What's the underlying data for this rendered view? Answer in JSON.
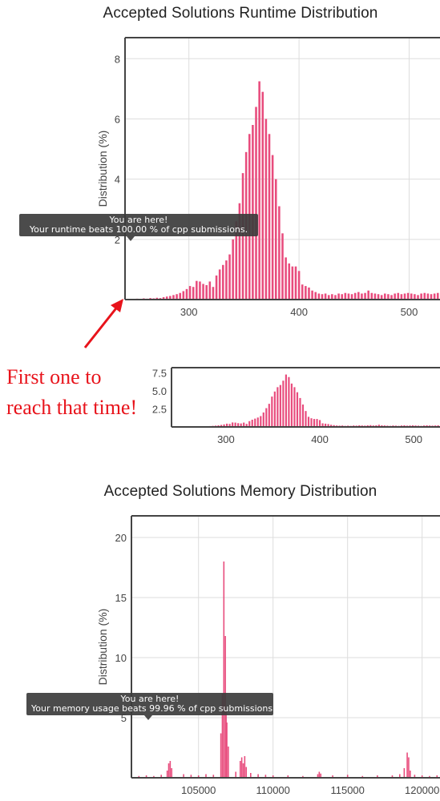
{
  "colors": {
    "bar": "#e84c7d",
    "annotation": "#e8131b",
    "axis": "#444444",
    "grid": "#dddddd"
  },
  "annotation": {
    "line1": "First one to",
    "line2": "reach that time!"
  },
  "runtime_tooltip": {
    "line1": "You are here!",
    "line2": "Your runtime beats 100.00 % of cpp submissions."
  },
  "memory_tooltip": {
    "line1": "You are here!",
    "line2": "Your memory usage beats 99.96 % of cpp submissions."
  },
  "chart_data": [
    {
      "id": "runtime",
      "type": "bar",
      "title": "Accepted Solutions Runtime Distribution",
      "ylabel": "Distribution (%)",
      "xlabel": "",
      "xlim": [
        242,
        528
      ],
      "ylim": [
        0,
        8.7
      ],
      "xticks": [
        300,
        400,
        500
      ],
      "yticks": [
        2,
        4,
        6,
        8
      ],
      "grid": true,
      "bin_width": 3,
      "x": [
        247,
        250,
        253,
        256,
        259,
        262,
        265,
        268,
        271,
        274,
        277,
        280,
        283,
        286,
        289,
        292,
        295,
        298,
        301,
        304,
        307,
        310,
        313,
        316,
        319,
        322,
        325,
        328,
        331,
        334,
        337,
        340,
        343,
        346,
        349,
        352,
        355,
        358,
        361,
        364,
        367,
        370,
        373,
        376,
        379,
        382,
        385,
        388,
        391,
        394,
        397,
        400,
        403,
        406,
        409,
        412,
        415,
        418,
        421,
        424,
        427,
        430,
        433,
        436,
        439,
        442,
        445,
        448,
        451,
        454,
        457,
        460,
        463,
        466,
        469,
        472,
        475,
        478,
        481,
        484,
        487,
        490,
        493,
        496,
        499,
        502,
        505,
        508,
        511,
        514,
        517,
        520,
        523,
        526
      ],
      "values": [
        0.02,
        0.02,
        0.03,
        0.02,
        0.04,
        0.03,
        0.05,
        0.04,
        0.06,
        0.05,
        0.08,
        0.1,
        0.12,
        0.15,
        0.18,
        0.22,
        0.28,
        0.35,
        0.45,
        0.42,
        0.62,
        0.6,
        0.52,
        0.48,
        0.6,
        0.42,
        0.8,
        1.0,
        1.15,
        1.3,
        1.5,
        2.0,
        2.6,
        3.2,
        4.2,
        4.9,
        5.5,
        5.8,
        6.4,
        7.25,
        6.9,
        6.0,
        5.5,
        4.8,
        4.0,
        3.1,
        2.2,
        1.4,
        1.2,
        1.1,
        1.1,
        0.95,
        0.5,
        0.45,
        0.4,
        0.3,
        0.25,
        0.2,
        0.18,
        0.2,
        0.15,
        0.18,
        0.15,
        0.2,
        0.18,
        0.22,
        0.2,
        0.18,
        0.22,
        0.25,
        0.2,
        0.22,
        0.3,
        0.22,
        0.2,
        0.18,
        0.15,
        0.2,
        0.18,
        0.15,
        0.2,
        0.22,
        0.18,
        0.2,
        0.22,
        0.2,
        0.18,
        0.15,
        0.2,
        0.22,
        0.2,
        0.18,
        0.2,
        0.22
      ]
    },
    {
      "id": "runtime-overview",
      "type": "bar",
      "title": "",
      "ylabel": "",
      "xlim": [
        242,
        528
      ],
      "ylim": [
        0,
        8.2
      ],
      "xticks": [
        300,
        400,
        500
      ],
      "yticks": [
        2.5,
        5.0,
        7.5
      ],
      "ytick_labels": [
        "2.5",
        "5.0",
        "7.5"
      ],
      "grid": false,
      "same_data_as": "runtime"
    },
    {
      "id": "memory",
      "type": "bar",
      "title": "Accepted Solutions Memory Distribution",
      "ylabel": "Distribution (%)",
      "xlabel": "",
      "xlim": [
        100500,
        121200
      ],
      "ylim": [
        0,
        21.8
      ],
      "xticks": [
        105000,
        110000,
        115000,
        120000
      ],
      "yticks": [
        5,
        10,
        15,
        20
      ],
      "grid": true,
      "bin_width": 100,
      "x": [
        101000,
        101500,
        102000,
        102500,
        102900,
        103000,
        103100,
        103200,
        104000,
        104500,
        105000,
        105500,
        106000,
        106500,
        106600,
        106700,
        106800,
        106850,
        106900,
        107000,
        107500,
        107800,
        107900,
        108000,
        108100,
        108200,
        108500,
        109000,
        109500,
        110000,
        111000,
        112000,
        113000,
        113100,
        113200,
        114000,
        115000,
        116000,
        117000,
        118000,
        118500,
        118800,
        119000,
        119100,
        119200,
        119500,
        120000,
        120500,
        121000
      ],
      "values": [
        0.15,
        0.2,
        0.15,
        0.25,
        0.6,
        1.2,
        1.4,
        0.8,
        0.3,
        0.25,
        0.2,
        0.3,
        0.25,
        3.7,
        7.0,
        18.0,
        11.8,
        5.5,
        4.6,
        2.6,
        0.5,
        1.4,
        1.7,
        1.2,
        1.8,
        0.9,
        0.4,
        0.3,
        0.25,
        0.2,
        0.2,
        0.15,
        0.3,
        0.5,
        0.35,
        0.2,
        0.25,
        0.15,
        0.2,
        0.2,
        0.3,
        0.8,
        2.1,
        1.7,
        0.6,
        0.25,
        0.2,
        0.15,
        0.2
      ]
    }
  ]
}
